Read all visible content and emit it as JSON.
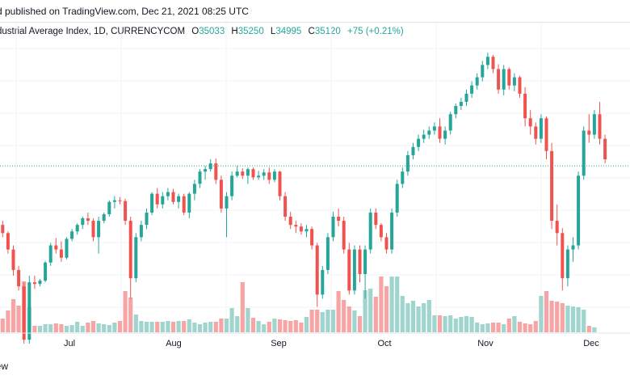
{
  "header": {
    "published": "d published on TradingView.com, Dec 21, 2021 08:25 UTC"
  },
  "legend": {
    "title": "dustrial Average Index, 1D, CURRENCYCOM",
    "open_label": "O",
    "open": "35033",
    "high_label": "H",
    "high": "35250",
    "low_label": "L",
    "low": "34995",
    "close_label": "C",
    "close": "35120",
    "change": "+75 (+0.21%)"
  },
  "footer": {
    "text": "iew"
  },
  "colors": {
    "up": "#26a69a",
    "down": "#ef5350",
    "up_volume": "#9fd5ce",
    "down_volume": "#f6a5a4",
    "grid": "#f0f3fa",
    "last_price_line": "#26a69a"
  },
  "chart_data": {
    "type": "candlestick",
    "timeframe": "1D",
    "x_tick_labels": [
      "Jul",
      "Aug",
      "Sep",
      "Oct",
      "Nov",
      "Dec"
    ],
    "grid": true,
    "y_axis_visible": false,
    "last_price": 35120,
    "price_range": [
      33100,
      36600
    ],
    "candles": [
      [
        34400,
        34450,
        34250,
        34300
      ],
      [
        34300,
        34320,
        34050,
        34100
      ],
      [
        34100,
        34150,
        33780,
        33850
      ],
      [
        33850,
        33900,
        33600,
        33650
      ],
      [
        33650,
        33700,
        32950,
        33000
      ],
      [
        33000,
        33780,
        32950,
        33700
      ],
      [
        33700,
        33780,
        33620,
        33680
      ],
      [
        33680,
        33740,
        33650,
        33720
      ],
      [
        33720,
        33960,
        33700,
        33940
      ],
      [
        33940,
        34180,
        33900,
        34150
      ],
      [
        34150,
        34240,
        34050,
        34100
      ],
      [
        34100,
        34200,
        33950,
        34000
      ],
      [
        34000,
        34250,
        33980,
        34230
      ],
      [
        34230,
        34350,
        34200,
        34320
      ],
      [
        34320,
        34420,
        34280,
        34400
      ],
      [
        34400,
        34500,
        34350,
        34480
      ],
      [
        34480,
        34550,
        34400,
        34450
      ],
      [
        34450,
        34480,
        34200,
        34250
      ],
      [
        34250,
        34500,
        34050,
        34450
      ],
      [
        34450,
        34550,
        34420,
        34530
      ],
      [
        34530,
        34700,
        34500,
        34680
      ],
      [
        34680,
        34750,
        34600,
        34700
      ],
      [
        34700,
        34740,
        34650,
        34690
      ],
      [
        34690,
        34720,
        34400,
        34450
      ],
      [
        34450,
        34500,
        33500,
        33750
      ],
      [
        33750,
        34300,
        33700,
        34250
      ],
      [
        34250,
        34450,
        34200,
        34400
      ],
      [
        34400,
        34600,
        34350,
        34550
      ],
      [
        34550,
        34800,
        34520,
        34780
      ],
      [
        34780,
        34850,
        34600,
        34650
      ],
      [
        34650,
        34800,
        34600,
        34750
      ],
      [
        34750,
        34850,
        34700,
        34800
      ],
      [
        34800,
        34840,
        34650,
        34680
      ],
      [
        34680,
        34780,
        34600,
        34750
      ],
      [
        34750,
        34780,
        34520,
        34550
      ],
      [
        34550,
        34800,
        34480,
        34780
      ],
      [
        34780,
        34950,
        34700,
        34900
      ],
      [
        34900,
        35080,
        34850,
        35050
      ],
      [
        35050,
        35120,
        34950,
        35080
      ],
      [
        35080,
        35200,
        35050,
        35150
      ],
      [
        35150,
        35210,
        34900,
        34950
      ],
      [
        34950,
        35000,
        34550,
        34600
      ],
      [
        34600,
        34800,
        34250,
        34750
      ],
      [
        34750,
        35050,
        34700,
        35000
      ],
      [
        35000,
        35120,
        34980,
        35050
      ],
      [
        35050,
        35090,
        34960,
        35000
      ],
      [
        35000,
        35100,
        34900,
        35080
      ],
      [
        35080,
        35100,
        34950,
        34980
      ],
      [
        34980,
        35060,
        34950,
        35000
      ],
      [
        35000,
        35080,
        34950,
        35040
      ],
      [
        35040,
        35100,
        34900,
        34950
      ],
      [
        34950,
        35080,
        34920,
        35050
      ],
      [
        35050,
        35060,
        34700,
        34750
      ],
      [
        34750,
        34800,
        34450,
        34500
      ],
      [
        34500,
        34560,
        34350,
        34400
      ],
      [
        34400,
        34450,
        34300,
        34380
      ],
      [
        34380,
        34420,
        34280,
        34320
      ],
      [
        34320,
        34400,
        34250,
        34350
      ],
      [
        34350,
        34380,
        34100,
        34150
      ],
      [
        34150,
        34180,
        33400,
        33550
      ],
      [
        33550,
        33900,
        33500,
        33850
      ],
      [
        33850,
        34300,
        33800,
        34250
      ],
      [
        34250,
        34560,
        34200,
        34500
      ],
      [
        34500,
        34600,
        34380,
        34450
      ],
      [
        34450,
        34500,
        34050,
        34100
      ],
      [
        34100,
        34180,
        33550,
        33600
      ],
      [
        33600,
        34150,
        33550,
        34100
      ],
      [
        34100,
        34150,
        33700,
        33800
      ],
      [
        33800,
        34150,
        33500,
        34100
      ],
      [
        34100,
        34600,
        34050,
        34550
      ],
      [
        34550,
        34600,
        34350,
        34400
      ],
      [
        34400,
        34420,
        34200,
        34250
      ],
      [
        34250,
        34300,
        34050,
        34100
      ],
      [
        34100,
        34600,
        34050,
        34550
      ],
      [
        34550,
        34950,
        34500,
        34900
      ],
      [
        34900,
        35100,
        34850,
        35050
      ],
      [
        35050,
        35300,
        35000,
        35250
      ],
      [
        35250,
        35400,
        35200,
        35350
      ],
      [
        35350,
        35500,
        35300,
        35450
      ],
      [
        35450,
        35560,
        35400,
        35500
      ],
      [
        35500,
        35600,
        35450,
        35550
      ],
      [
        35550,
        35650,
        35500,
        35600
      ],
      [
        35600,
        35700,
        35400,
        35450
      ],
      [
        35450,
        35600,
        35380,
        35550
      ],
      [
        35550,
        35780,
        35500,
        35750
      ],
      [
        35750,
        35880,
        35700,
        35850
      ],
      [
        35850,
        35950,
        35800,
        35900
      ],
      [
        35900,
        36050,
        35850,
        36000
      ],
      [
        36000,
        36150,
        35950,
        36100
      ],
      [
        36100,
        36250,
        36050,
        36200
      ],
      [
        36200,
        36400,
        36150,
        36350
      ],
      [
        36350,
        36500,
        36300,
        36450
      ],
      [
        36450,
        36470,
        36250,
        36300
      ],
      [
        36300,
        36360,
        36000,
        36050
      ],
      [
        36050,
        36350,
        35980,
        36300
      ],
      [
        36300,
        36320,
        36050,
        36100
      ],
      [
        36100,
        36250,
        36030,
        36200
      ],
      [
        36200,
        36220,
        35950,
        36000
      ],
      [
        36000,
        36080,
        35600,
        35700
      ],
      [
        35700,
        35800,
        35500,
        35600
      ],
      [
        35600,
        35650,
        35380,
        35450
      ],
      [
        35450,
        35750,
        35400,
        35700
      ],
      [
        35700,
        35720,
        35200,
        35300
      ],
      [
        35300,
        35400,
        34350,
        34450
      ],
      [
        34450,
        34650,
        34150,
        34300
      ],
      [
        34300,
        34360,
        33600,
        33750
      ],
      [
        33750,
        34150,
        33650,
        34100
      ],
      [
        34100,
        34250,
        33950,
        34150
      ],
      [
        34150,
        35050,
        34100,
        35000
      ],
      [
        35000,
        35600,
        34950,
        35550
      ],
      [
        35550,
        35750,
        35400,
        35500
      ],
      [
        35500,
        35800,
        35450,
        35750
      ],
      [
        35750,
        35900,
        35380,
        35450
      ],
      [
        35450,
        35500,
        35150,
        35200
      ]
    ],
    "volumes": [
      0.17,
      0.27,
      0.41,
      0.33,
      0.63,
      0.31,
      0.08,
      0.08,
      0.1,
      0.1,
      0.11,
      0.1,
      0.08,
      0.09,
      0.13,
      0.08,
      0.12,
      0.14,
      0.11,
      0.1,
      0.09,
      0.12,
      0.14,
      0.51,
      0.43,
      0.22,
      0.14,
      0.13,
      0.13,
      0.13,
      0.13,
      0.14,
      0.13,
      0.14,
      0.14,
      0.16,
      0.12,
      0.1,
      0.12,
      0.13,
      0.13,
      0.17,
      0.17,
      0.3,
      0.2,
      0.62,
      0.3,
      0.18,
      0.14,
      0.1,
      0.13,
      0.17,
      0.16,
      0.15,
      0.14,
      0.15,
      0.12,
      0.19,
      0.28,
      0.28,
      0.25,
      0.28,
      0.28,
      0.51,
      0.4,
      0.32,
      0.27,
      0.2,
      0.52,
      0.54,
      0.44,
      0.69,
      0.57,
      0.69,
      0.69,
      0.45,
      0.36,
      0.39,
      0.32,
      0.36,
      0.4,
      0.21,
      0.21,
      0.2,
      0.21,
      0.17,
      0.19,
      0.2,
      0.19,
      0.12,
      0.1,
      0.11,
      0.12,
      0.12,
      0.1,
      0.17,
      0.2,
      0.13,
      0.11,
      0.1,
      0.14,
      0.45,
      0.51,
      0.39,
      0.38,
      0.36,
      0.33,
      0.32,
      0.31,
      0.28,
      0.08,
      0.06
    ]
  }
}
